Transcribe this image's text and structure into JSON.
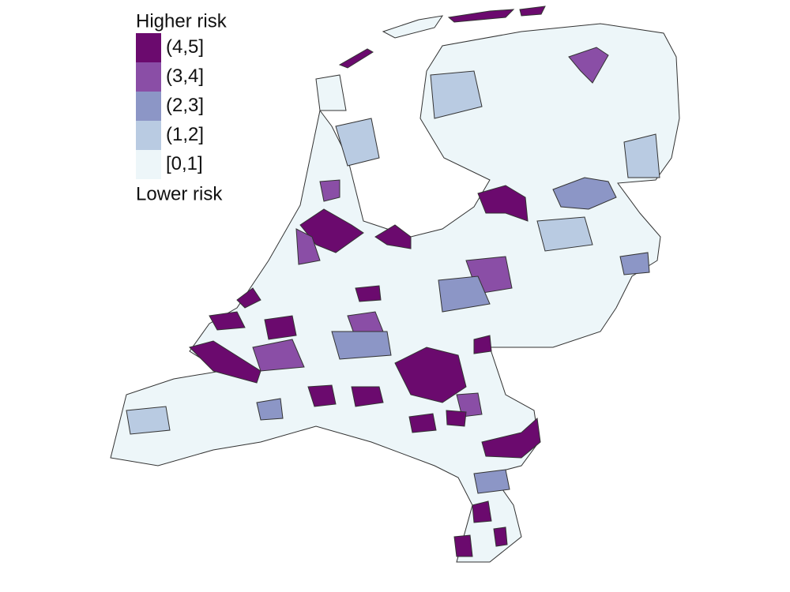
{
  "legend": {
    "top_label": "Higher risk",
    "bottom_label": "Lower risk",
    "classes": [
      {
        "label": "(4,5]",
        "color": "#6b0a6e"
      },
      {
        "label": "(3,4]",
        "color": "#8a4ea6"
      },
      {
        "label": "(2,3]",
        "color": "#8c96c6"
      },
      {
        "label": "(1,2]",
        "color": "#b9cbe2"
      },
      {
        "label": "[0,1]",
        "color": "#edf6f9"
      }
    ]
  }
}
